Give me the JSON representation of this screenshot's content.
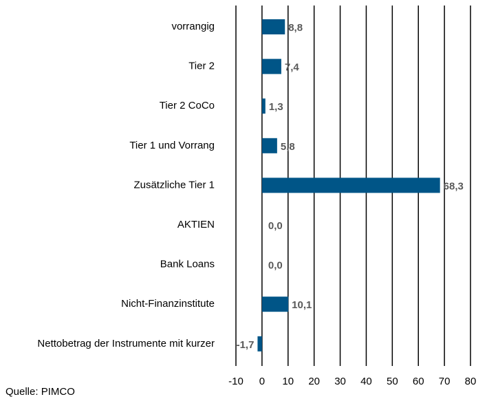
{
  "chart_data": {
    "type": "bar",
    "orientation": "horizontal",
    "categories": [
      "vorrangig",
      "Tier 2",
      "Tier 2 CoCo",
      "Tier 1 und Vorrang",
      "Zusätzliche Tier 1",
      "AKTIEN",
      "Bank Loans",
      "Nicht-Finanzinstitute",
      "Nettobetrag der Instrumente mit kurzer"
    ],
    "values": [
      8.8,
      7.4,
      1.3,
      5.8,
      68.3,
      0.0,
      0.0,
      10.1,
      -1.7
    ],
    "value_labels": [
      "8,8",
      "7,4",
      "1,3",
      "5,8",
      "68,3",
      "0,0",
      "0,0",
      "10,1",
      "-1,7"
    ],
    "color": "#005587",
    "xlim": [
      -10,
      80
    ],
    "xticks": [
      -10,
      0,
      10,
      20,
      30,
      40,
      50,
      60,
      70,
      80
    ],
    "grid": true,
    "source": "Quelle: PIMCO"
  }
}
